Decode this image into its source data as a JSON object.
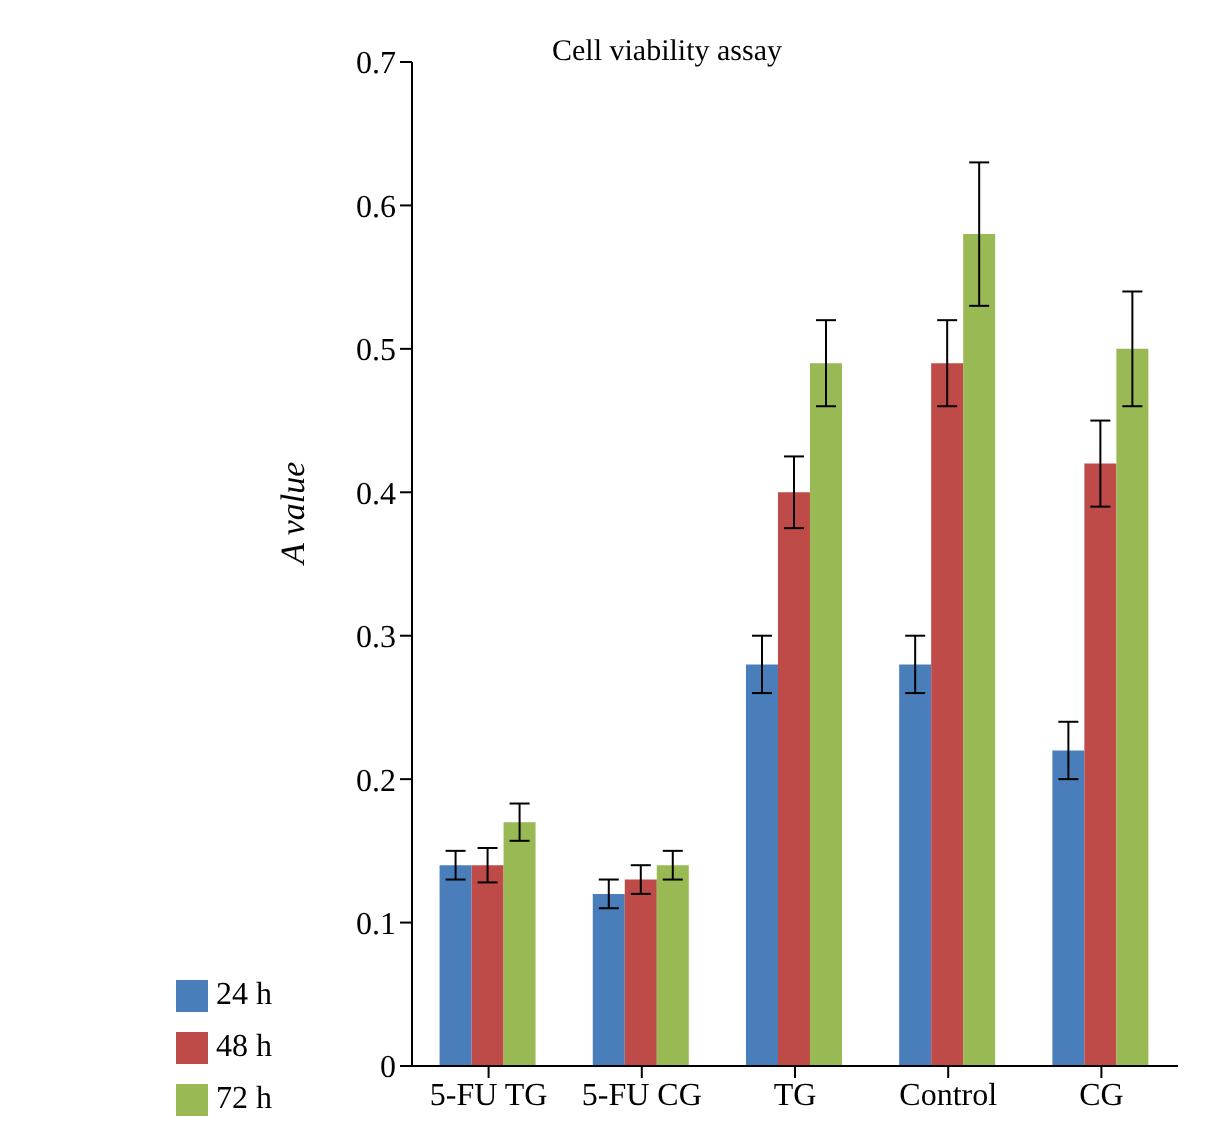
{
  "chart_data": {
    "type": "bar",
    "title": "Cell viability assay",
    "ylabel": "A value",
    "categories": [
      "5-FU TG",
      "5-FU CG",
      "TG",
      "Control",
      "CG"
    ],
    "series": [
      {
        "name": "24 h",
        "color": "#4a7ebb",
        "values": [
          0.14,
          0.12,
          0.28,
          0.28,
          0.22
        ],
        "errors": [
          0.01,
          0.01,
          0.02,
          0.02,
          0.02
        ]
      },
      {
        "name": "48 h",
        "color": "#be4b48",
        "values": [
          0.14,
          0.13,
          0.4,
          0.49,
          0.42
        ],
        "errors": [
          0.012,
          0.01,
          0.025,
          0.03,
          0.03
        ]
      },
      {
        "name": "72 h",
        "color": "#98b954",
        "values": [
          0.17,
          0.14,
          0.49,
          0.58,
          0.5
        ],
        "errors": [
          0.013,
          0.01,
          0.03,
          0.05,
          0.04
        ]
      }
    ],
    "ylim": [
      0,
      0.7
    ],
    "yticks": [
      0,
      0.1,
      0.2,
      0.3,
      0.4,
      0.5,
      0.6,
      0.7
    ],
    "grid": false,
    "legend": "bottom left"
  }
}
